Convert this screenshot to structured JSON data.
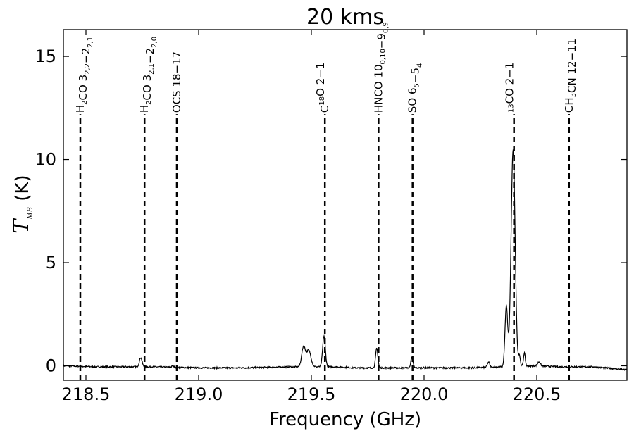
{
  "chart_data": {
    "type": "line",
    "title": "20 kms",
    "xlabel": "Frequency (GHz)",
    "ylabel": {
      "main": "T",
      "sub": "MB",
      "unit": " (K)"
    },
    "xlim": [
      218.4,
      220.9
    ],
    "ylim": [
      -0.7,
      16.3
    ],
    "xticks": [
      218.5,
      219.0,
      219.5,
      220.0,
      220.5
    ],
    "xtick_labels": [
      "218.5",
      "219.0",
      "219.5",
      "220.0",
      "220.5"
    ],
    "yticks": [
      0,
      5,
      10,
      15
    ],
    "ytick_labels": [
      "0",
      "5",
      "10",
      "15"
    ],
    "grid": false,
    "legend": "none",
    "line_color": "#000000",
    "baseline": [
      [
        218.4,
        0.0
      ],
      [
        218.55,
        -0.05
      ],
      [
        218.8,
        -0.05
      ],
      [
        219.0,
        -0.1
      ],
      [
        219.2,
        -0.1
      ],
      [
        219.4,
        -0.05
      ],
      [
        219.6,
        -0.05
      ],
      [
        219.7,
        -0.1
      ],
      [
        220.0,
        -0.1
      ],
      [
        220.2,
        -0.1
      ],
      [
        220.5,
        0.0
      ],
      [
        220.6,
        -0.05
      ],
      [
        220.75,
        -0.05
      ],
      [
        220.9,
        -0.2
      ]
    ],
    "peaks": [
      {
        "x": 218.743,
        "amp": 0.45,
        "width": 0.006
      },
      {
        "x": 218.885,
        "amp": 0.08,
        "width": 0.004
      },
      {
        "x": 219.465,
        "amp": 0.95,
        "width": 0.008
      },
      {
        "x": 219.488,
        "amp": 0.8,
        "width": 0.01
      },
      {
        "x": 219.556,
        "amp": 1.5,
        "width": 0.006
      },
      {
        "x": 219.79,
        "amp": 0.95,
        "width": 0.005
      },
      {
        "x": 219.946,
        "amp": 0.5,
        "width": 0.005
      },
      {
        "x": 220.286,
        "amp": 0.25,
        "width": 0.005
      },
      {
        "x": 220.365,
        "amp": 2.9,
        "width": 0.006
      },
      {
        "x": 220.395,
        "amp": 10.5,
        "width": 0.009
      },
      {
        "x": 220.423,
        "amp": 0.5,
        "width": 0.004
      },
      {
        "x": 220.445,
        "amp": 0.65,
        "width": 0.004
      },
      {
        "x": 220.51,
        "amp": 0.2,
        "width": 0.006
      }
    ],
    "lines": [
      {
        "x": 218.475,
        "label": [
          [
            "H",
            ""
          ],
          [
            "2",
            "sub"
          ],
          [
            "CO 3",
            ""
          ],
          [
            "2,2",
            "sub"
          ],
          [
            "−2",
            ""
          ],
          [
            "2,1",
            "sub"
          ]
        ]
      },
      {
        "x": 218.76,
        "label": [
          [
            "H",
            ""
          ],
          [
            "2",
            "sub"
          ],
          [
            "CO 3",
            ""
          ],
          [
            "2,1",
            "sub"
          ],
          [
            "−2",
            ""
          ],
          [
            "2,0",
            "sub"
          ]
        ]
      },
      {
        "x": 218.903,
        "label": [
          [
            "OCS 18−17",
            ""
          ]
        ]
      },
      {
        "x": 219.56,
        "label": [
          [
            "C",
            ""
          ],
          [
            "18",
            "sup"
          ],
          [
            "O 2−1",
            ""
          ]
        ]
      },
      {
        "x": 219.798,
        "label": [
          [
            "HNCO 10",
            ""
          ],
          [
            "0,10",
            "sub"
          ],
          [
            "−9",
            ""
          ],
          [
            "0,9",
            "sub"
          ]
        ]
      },
      {
        "x": 219.949,
        "label": [
          [
            "SO 6",
            ""
          ],
          [
            "5",
            "sub"
          ],
          [
            "−5",
            ""
          ],
          [
            "4",
            "sub"
          ]
        ]
      },
      {
        "x": 220.399,
        "label": [
          [
            "",
            ""
          ],
          [
            "13",
            "sup"
          ],
          [
            "CO 2−1",
            ""
          ]
        ]
      },
      {
        "x": 220.643,
        "label": [
          [
            "CH",
            ""
          ],
          [
            "3",
            "sub"
          ],
          [
            "CN 12−11",
            ""
          ]
        ]
      }
    ],
    "line_top_y": 12.2,
    "line_bottom_y": -0.7
  }
}
